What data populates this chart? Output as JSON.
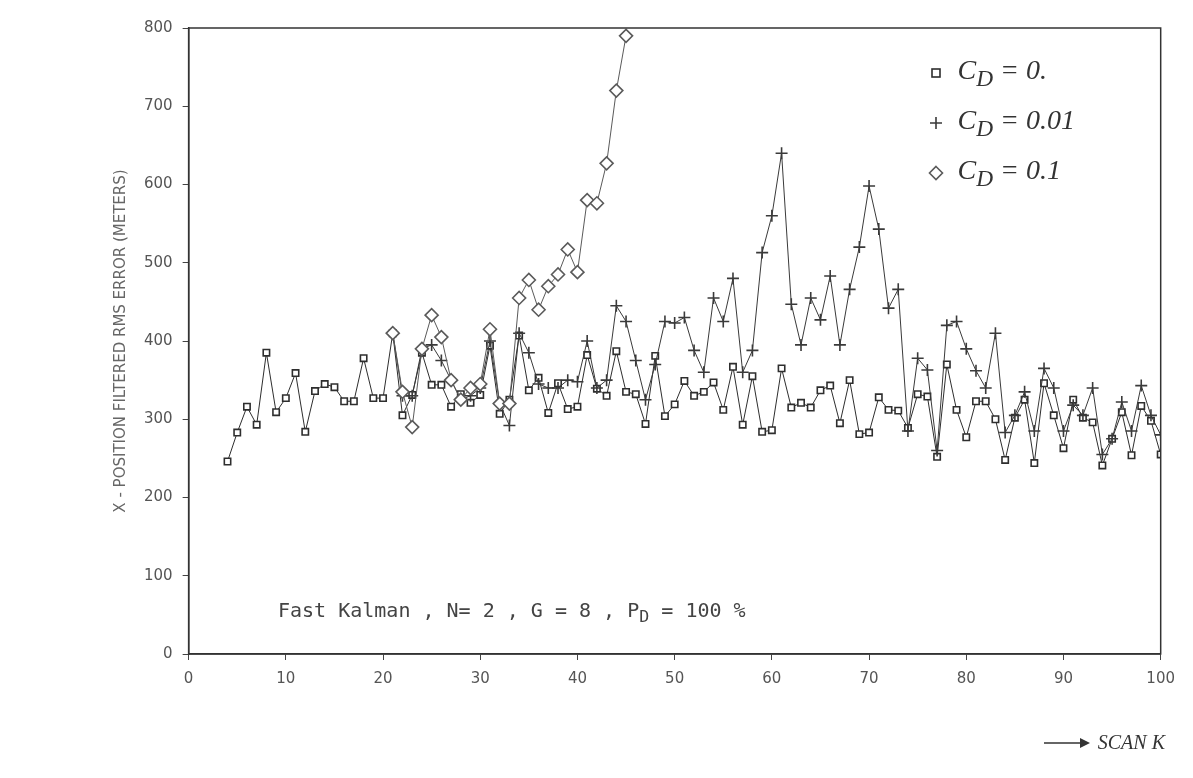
{
  "chart_data": {
    "type": "line",
    "ylabel": "X - POSITION FILTERED RMS ERROR (METERS)",
    "xlabel": "SCAN K",
    "xlim": [
      0,
      100
    ],
    "ylim": [
      0,
      800
    ],
    "xticks": [
      0,
      10,
      20,
      30,
      40,
      50,
      60,
      70,
      80,
      90,
      100
    ],
    "yticks": [
      0,
      100,
      200,
      300,
      400,
      500,
      600,
      700,
      800
    ],
    "grid": false,
    "legend": "top right",
    "line_style": "solid",
    "annotations": [
      "Fast Kalman , N= 2 , G = 8 , P$_{D}$ = 100 %"
    ],
    "x": [
      4,
      5,
      6,
      7,
      8,
      9,
      10,
      11,
      12,
      13,
      14,
      15,
      16,
      17,
      18,
      19,
      20,
      21,
      22,
      23,
      24,
      25,
      26,
      27,
      28,
      29,
      30,
      31,
      32,
      33,
      34,
      35,
      36,
      37,
      38,
      39,
      40,
      41,
      42,
      43,
      44,
      45,
      46,
      47,
      48,
      49,
      50,
      51,
      52,
      53,
      54,
      55,
      56,
      57,
      58,
      59,
      60,
      61,
      62,
      63,
      64,
      65,
      66,
      67,
      68,
      69,
      70,
      71,
      72,
      73,
      74,
      75,
      76,
      77,
      78,
      79,
      80,
      81,
      82,
      83,
      84,
      85,
      86,
      87,
      88,
      89,
      90,
      91,
      92,
      93,
      94,
      95,
      96,
      97,
      98,
      99,
      100
    ],
    "series": [
      {
        "name": "C$_{D}$ = 0.",
        "color": "#2e2e2e",
        "marker": "square",
        "values": [
          246,
          283,
          316,
          293,
          385,
          309,
          327,
          359,
          284,
          336,
          345,
          341,
          323,
          323,
          378,
          327,
          327,
          410,
          305,
          331,
          385,
          344,
          344,
          316,
          332,
          321,
          331,
          394,
          307,
          325,
          407,
          337,
          353,
          308,
          346,
          313,
          316,
          382,
          339,
          330,
          387,
          335,
          332,
          294,
          381,
          304,
          319,
          349,
          330,
          335,
          347,
          312,
          367,
          293,
          355,
          284,
          286,
          365,
          315,
          321,
          315,
          337,
          343,
          295,
          350,
          281,
          283,
          328,
          312,
          311,
          289,
          332,
          329,
          252,
          370,
          312,
          277,
          323,
          323,
          300,
          248,
          302,
          325,
          244,
          346,
          305,
          263,
          325,
          302,
          296,
          241,
          275,
          309,
          254,
          317,
          298,
          255
        ]
      },
      {
        "name": "C$_{D}$ = 0.01",
        "color": "#3a3a3a",
        "marker": "cross",
        "values": [
          null,
          null,
          null,
          null,
          null,
          null,
          null,
          null,
          null,
          null,
          null,
          null,
          null,
          null,
          null,
          null,
          null,
          410,
          330,
          330,
          390,
          395,
          375,
          350,
          325,
          330,
          340,
          400,
          320,
          292,
          410,
          385,
          345,
          340,
          340,
          350,
          348,
          400,
          340,
          350,
          445,
          425,
          375,
          325,
          370,
          425,
          423,
          430,
          388,
          360,
          455,
          425,
          480,
          360,
          388,
          513,
          560,
          640,
          447,
          395,
          455,
          427,
          483,
          395,
          466,
          520,
          598,
          543,
          442,
          466,
          285,
          378,
          363,
          260,
          420,
          425,
          390,
          362,
          340,
          410,
          283,
          305,
          335,
          285,
          365,
          340,
          285,
          318,
          305,
          340,
          255,
          275,
          322,
          285,
          343,
          305,
          280
        ]
      },
      {
        "name": "C$_{D}$ = 0.1",
        "color": "#5a5a5a",
        "marker": "diamond",
        "values": [
          null,
          null,
          null,
          null,
          null,
          null,
          null,
          null,
          null,
          null,
          null,
          null,
          null,
          null,
          null,
          null,
          null,
          410,
          335,
          290,
          390,
          433,
          405,
          350,
          325,
          340,
          345,
          415,
          320,
          320,
          455,
          478,
          440,
          470,
          485,
          517,
          488,
          580,
          576,
          627,
          720,
          790,
          null,
          null,
          null,
          null,
          null,
          null,
          null,
          null,
          null,
          null,
          null,
          null,
          null,
          null,
          null,
          null,
          null,
          null,
          null,
          null,
          null,
          null,
          null,
          null,
          null,
          null,
          null,
          null,
          null,
          null,
          null,
          null,
          null,
          null,
          null,
          null,
          null,
          null,
          null,
          null,
          null,
          null,
          null,
          null,
          null,
          null,
          null,
          null,
          null,
          null,
          null,
          null,
          null,
          null,
          null
        ]
      }
    ]
  }
}
